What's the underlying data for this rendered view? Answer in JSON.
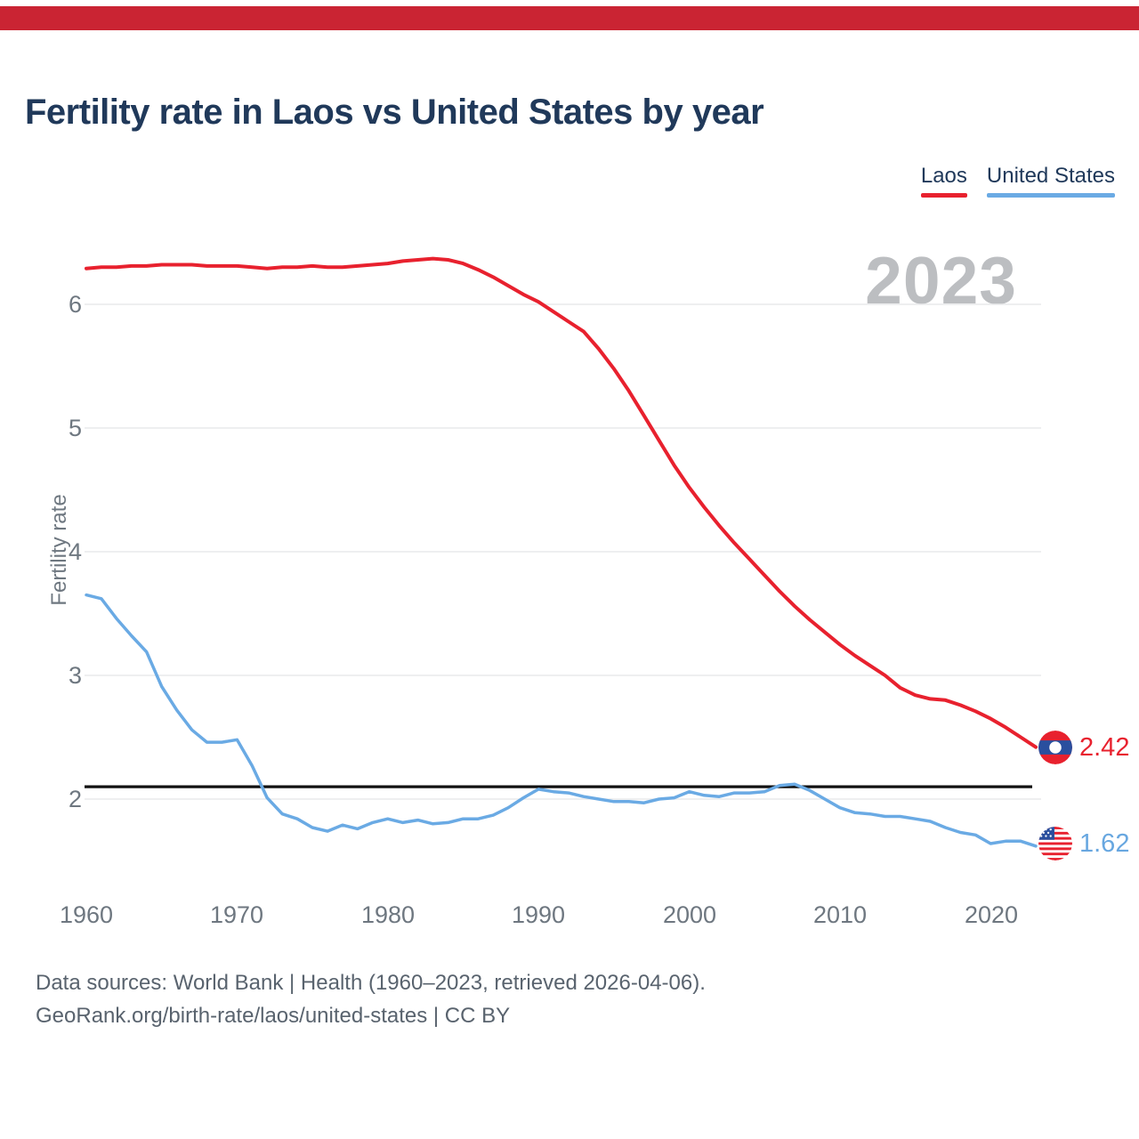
{
  "header_bar": {
    "color": "#ca2433"
  },
  "title": "Fertility rate in Laos vs United States by year",
  "legend": [
    {
      "label": "Laos",
      "color": "#e8212e"
    },
    {
      "label": "United States",
      "color": "#6aaae4"
    }
  ],
  "watermark": "2023",
  "y_axis": {
    "label": "Fertility rate",
    "ticks": [
      6,
      5,
      4,
      3,
      2
    ]
  },
  "x_axis": {
    "ticks": [
      1960,
      1970,
      1980,
      1990,
      2000,
      2010,
      2020
    ]
  },
  "end_labels": [
    {
      "series": "Laos",
      "value": "2.42",
      "color": "#e8212e",
      "icon": "laos-flag-icon"
    },
    {
      "series": "United States",
      "value": "1.62",
      "color": "#68a7e0",
      "icon": "us-flag-icon"
    }
  ],
  "footer": {
    "line1": "Data sources: World Bank | Health (1960–2023, retrieved 2026-04-06).",
    "line2": "GeoRank.org/birth-rate/laos/united-states | CC BY"
  },
  "chart_data": {
    "type": "line",
    "title": "Fertility rate in Laos vs United States by year",
    "xlabel": "",
    "ylabel": "Fertility rate",
    "xlim": [
      1960,
      2023
    ],
    "ylim": [
      1.5,
      6.6
    ],
    "grid": "horizontal",
    "gridline_color": "#e9eaec",
    "reference_line": {
      "value": 2.1,
      "color": "#111111",
      "meaning": "replacement fertility level"
    },
    "x": [
      1960,
      1961,
      1962,
      1963,
      1964,
      1965,
      1966,
      1967,
      1968,
      1969,
      1970,
      1971,
      1972,
      1973,
      1974,
      1975,
      1976,
      1977,
      1978,
      1979,
      1980,
      1981,
      1982,
      1983,
      1984,
      1985,
      1986,
      1987,
      1988,
      1989,
      1990,
      1991,
      1992,
      1993,
      1994,
      1995,
      1996,
      1997,
      1998,
      1999,
      2000,
      2001,
      2002,
      2003,
      2004,
      2005,
      2006,
      2007,
      2008,
      2009,
      2010,
      2011,
      2012,
      2013,
      2014,
      2015,
      2016,
      2017,
      2018,
      2019,
      2020,
      2021,
      2022,
      2023
    ],
    "series": [
      {
        "name": "Laos",
        "color": "#e8212e",
        "final_value": 2.42,
        "values": [
          6.29,
          6.3,
          6.3,
          6.31,
          6.31,
          6.32,
          6.32,
          6.32,
          6.31,
          6.31,
          6.31,
          6.3,
          6.29,
          6.3,
          6.3,
          6.31,
          6.3,
          6.3,
          6.31,
          6.32,
          6.33,
          6.35,
          6.36,
          6.37,
          6.36,
          6.33,
          6.28,
          6.22,
          6.15,
          6.08,
          6.02,
          5.94,
          5.86,
          5.78,
          5.64,
          5.48,
          5.3,
          5.1,
          4.9,
          4.7,
          4.52,
          4.36,
          4.21,
          4.07,
          3.94,
          3.81,
          3.68,
          3.56,
          3.45,
          3.35,
          3.25,
          3.16,
          3.08,
          3.0,
          2.9,
          2.84,
          2.81,
          2.8,
          2.76,
          2.71,
          2.65,
          2.58,
          2.5,
          2.42
        ]
      },
      {
        "name": "United States",
        "color": "#6aaae4",
        "final_value": 1.62,
        "values": [
          3.65,
          3.62,
          3.46,
          3.32,
          3.19,
          2.91,
          2.72,
          2.56,
          2.46,
          2.46,
          2.48,
          2.27,
          2.01,
          1.88,
          1.84,
          1.77,
          1.74,
          1.79,
          1.76,
          1.81,
          1.84,
          1.81,
          1.83,
          1.8,
          1.81,
          1.84,
          1.84,
          1.87,
          1.93,
          2.01,
          2.08,
          2.06,
          2.05,
          2.02,
          2.0,
          1.98,
          1.98,
          1.97,
          2.0,
          2.01,
          2.06,
          2.03,
          2.02,
          2.05,
          2.05,
          2.06,
          2.11,
          2.12,
          2.07,
          2.0,
          1.93,
          1.89,
          1.88,
          1.86,
          1.86,
          1.84,
          1.82,
          1.77,
          1.73,
          1.71,
          1.64,
          1.66,
          1.66,
          1.62
        ]
      }
    ]
  }
}
